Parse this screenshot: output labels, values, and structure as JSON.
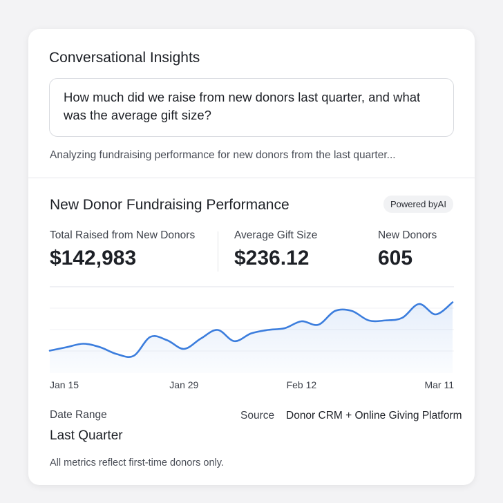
{
  "header": {
    "title": "Conversational Insights"
  },
  "query": "How much did we raise from new donors last quarter, and what was the average gift size?",
  "status": "Analyzing fundraising performance for new donors from the last quarter...",
  "section": {
    "title": "New Donor Fundraising Performance",
    "badge": "Powered byAI"
  },
  "metrics": [
    {
      "label": "Total Raised from New Donors",
      "value": "$142,983"
    },
    {
      "label": "Average Gift Size",
      "value": "$236.12"
    },
    {
      "label": "New Donors",
      "value": "605"
    }
  ],
  "chart_data": {
    "type": "line",
    "categories": [
      "Jan 15",
      null,
      null,
      null,
      null,
      null,
      null,
      null,
      "Jan 29",
      null,
      null,
      null,
      null,
      null,
      null,
      "Feb 12",
      null,
      null,
      null,
      null,
      null,
      null,
      null,
      null,
      "Mar 11"
    ],
    "values": [
      26,
      30,
      34,
      30,
      22,
      20,
      42,
      38,
      28,
      40,
      50,
      37,
      46,
      50,
      52,
      60,
      56,
      72,
      72,
      61,
      61,
      64,
      80,
      68,
      82
    ],
    "ylim": [
      0,
      100
    ],
    "color": "#3b7ddd"
  },
  "footer": {
    "date_range_label": "Date Range",
    "date_range_value": "Last Quarter",
    "source_label": "Source",
    "source_value": "Donor CRM + Online Giving Platform",
    "note": "All metrics reflect first-time donors only."
  }
}
